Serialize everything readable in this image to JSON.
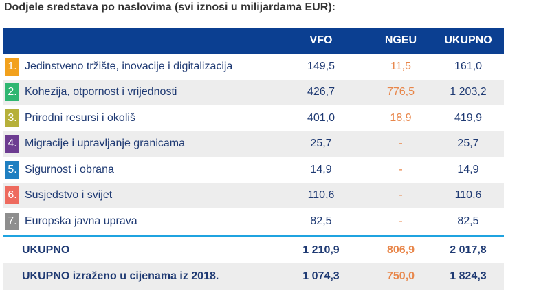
{
  "title": "Dodjele sredstava po naslovima (svi iznosi u milijardama EUR):",
  "headers": {
    "vfo": "VFO",
    "ngeu": "NGEU",
    "ukupno": "UKUPNO"
  },
  "rows": [
    {
      "num": "1.",
      "color": "#f2a11d",
      "label": "Jedinstveno tržište, inovacije i digitalizacija",
      "vfo": "149,5",
      "ngeu": "11,5",
      "ukupno": "161,0"
    },
    {
      "num": "2.",
      "color": "#2fb671",
      "label": "Kohezija, otpornost i vrijednosti",
      "vfo": "426,7",
      "ngeu": "776,5",
      "ukupno": "1 203,2"
    },
    {
      "num": "3.",
      "color": "#b6b03a",
      "label": "Prirodni resursi i okoliš",
      "vfo": "401,0",
      "ngeu": "18,9",
      "ukupno": "419,9"
    },
    {
      "num": "4.",
      "color": "#6d3c91",
      "label": "Migracije i upravljanje granicama",
      "vfo": "25,7",
      "ngeu": "-",
      "ukupno": "25,7"
    },
    {
      "num": "5.",
      "color": "#1f7fc1",
      "label": "Sigurnost i obrana",
      "vfo": "14,9",
      "ngeu": "-",
      "ukupno": "14,9"
    },
    {
      "num": "6.",
      "color": "#ee6a5e",
      "label": "Susjedstvo i svijet",
      "vfo": "110,6",
      "ngeu": "-",
      "ukupno": "110,6"
    },
    {
      "num": "7.",
      "color": "#8e8e8e",
      "label": "Europska javna uprava",
      "vfo": "82,5",
      "ngeu": "-",
      "ukupno": "82,5"
    }
  ],
  "totals": [
    {
      "label": "UKUPNO",
      "vfo": "1 210,9",
      "ngeu": "806,9",
      "ukupno": "2 017,8"
    },
    {
      "label": "UKUPNO izraženo u cijenama iz 2018.",
      "vfo": "1 074,3",
      "ngeu": "750,0",
      "ukupno": "1 824,3"
    }
  ]
}
